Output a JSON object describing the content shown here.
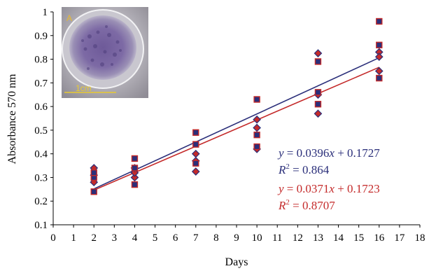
{
  "chart_data": {
    "type": "scatter",
    "title": "",
    "xlabel": "Days",
    "ylabel": "Absorbance 570 nm",
    "xlim": [
      0,
      18
    ],
    "ylim": [
      0.1,
      1
    ],
    "x_ticks": [
      "0",
      "1",
      "2",
      "3",
      "4",
      "5",
      "6",
      "7",
      "8",
      "9",
      "10",
      "11",
      "12",
      "13",
      "14",
      "15",
      "16",
      "17",
      "18"
    ],
    "y_ticks": [
      "0.1",
      "0.2",
      "0.3",
      "0.4",
      "0.5",
      "0.6",
      "0.7",
      "0.8",
      "0.9",
      "1"
    ],
    "grid": false,
    "series": [
      {
        "color": "#2b2f7a",
        "marker": "square",
        "points": [
          [
            2,
            0.24
          ],
          [
            2,
            0.3
          ],
          [
            2,
            0.32
          ],
          [
            4,
            0.27
          ],
          [
            4,
            0.34
          ],
          [
            4,
            0.38
          ],
          [
            7,
            0.36
          ],
          [
            7,
            0.44
          ],
          [
            7,
            0.49
          ],
          [
            10,
            0.43
          ],
          [
            10,
            0.48
          ],
          [
            10,
            0.63
          ],
          [
            13,
            0.61
          ],
          [
            13,
            0.66
          ],
          [
            13,
            0.79
          ],
          [
            16,
            0.72
          ],
          [
            16,
            0.86
          ],
          [
            16,
            0.96
          ]
        ],
        "fit": {
          "slope": 0.0396,
          "intercept": 0.1727,
          "x_range": [
            2,
            16
          ]
        },
        "equation": {
          "prefix": "y",
          "body": " = 0.0396",
          "var": "x",
          "tail": " + 0.1727"
        },
        "r2": {
          "label": "R",
          "sup": "2",
          "value": " = 0.864"
        }
      },
      {
        "color": "#c42a2a",
        "marker": "diamond",
        "points": [
          [
            2,
            0.28
          ],
          [
            2,
            0.31
          ],
          [
            2,
            0.34
          ],
          [
            4,
            0.3
          ],
          [
            4,
            0.32
          ],
          [
            4,
            0.34
          ],
          [
            7,
            0.325
          ],
          [
            7,
            0.37
          ],
          [
            7,
            0.4
          ],
          [
            10,
            0.42
          ],
          [
            10,
            0.51
          ],
          [
            10,
            0.545
          ],
          [
            13,
            0.57
          ],
          [
            13,
            0.65
          ],
          [
            13,
            0.825
          ],
          [
            16,
            0.75
          ],
          [
            16,
            0.83
          ],
          [
            16,
            0.81
          ]
        ],
        "fit": {
          "slope": 0.0371,
          "intercept": 0.1723,
          "x_range": [
            2,
            16
          ]
        },
        "equation": {
          "prefix": "y",
          "body": " = 0.0371",
          "var": "x",
          "tail": " + 0.1723"
        },
        "r2": {
          "label": "R",
          "sup": "2",
          "value": " = 0.8707"
        }
      }
    ],
    "inset": {
      "label": "A",
      "scale_bar": "1cm"
    }
  }
}
